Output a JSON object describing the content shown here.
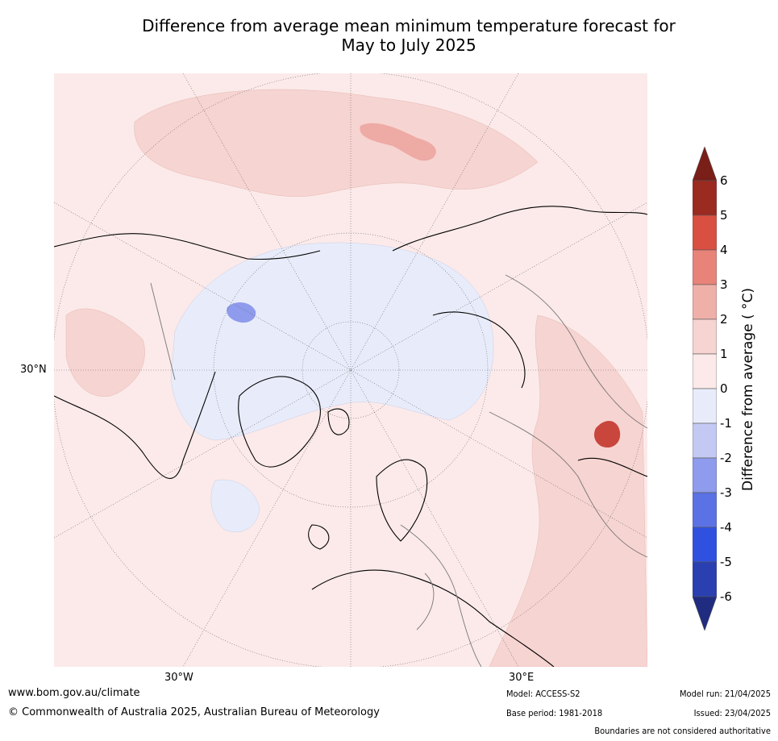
{
  "title_line1": "Difference from average mean minimum temperature forecast for",
  "title_line2": "May to July 2025",
  "map": {
    "lat_label": "30°N",
    "lon_label_west": "30°W",
    "lon_label_east": "30°E"
  },
  "colorbar": {
    "title": "Difference from average ( °C)",
    "ticks": [
      "6",
      "5",
      "4",
      "3",
      "2",
      "1",
      "0",
      "-1",
      "-2",
      "-3",
      "-4",
      "-5",
      "-6"
    ],
    "colors": [
      "#9b2a20",
      "#d94f41",
      "#e8837a",
      "#f0b0aa",
      "#f6d4d1",
      "#fbeae9",
      "#e8ecfa",
      "#c3c9f2",
      "#8f9bec",
      "#5b72e4",
      "#3050e0",
      "#2a3fb0"
    ],
    "top_arrow_color": "#7a1e18",
    "bottom_arrow_color": "#1f2c80"
  },
  "footer": {
    "website": "www.bom.gov.au/climate",
    "copyright": "© Commonwealth of Australia 2025, Australian Bureau of Meteorology",
    "model": "Model: ACCESS-S2",
    "base_period": "Base period: 1981-2018",
    "model_run": "Model run: 21/04/2025",
    "issued": "Issued: 23/04/2025",
    "disclaimer": "Boundaries are not considered authoritative"
  }
}
